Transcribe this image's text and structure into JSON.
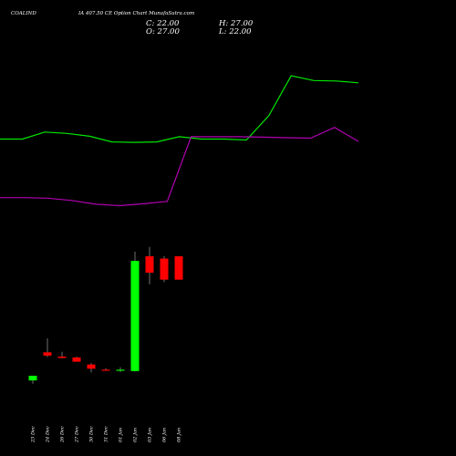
{
  "header": {
    "symbol": "COALIND",
    "title": "IA 407.50  CE Option  Chart MunafaSutra.com",
    "close": "C: 22.00",
    "high": "H: 27.00",
    "open": "O: 27.00",
    "low": "L: 22.00"
  },
  "colors": {
    "background": "#000000",
    "up": "#00ff00",
    "down": "#ff0000",
    "green_line": "#00e600",
    "purple_line": "#b000b0",
    "text": "#ffffff"
  },
  "chart_data": {
    "type": "candlestick",
    "categories": [
      "23 Dec",
      "24 Dec",
      "26 Dec",
      "27 Dec",
      "30 Dec",
      "31 Dec",
      "01 Jan",
      "02 Jan",
      "03 Jan",
      "06 Jan",
      "08 Jan"
    ],
    "candles": [
      {
        "open": 0.5,
        "high": 1.5,
        "low": -0.2,
        "close": 1.5
      },
      {
        "open": 6.5,
        "high": 9.5,
        "low": 5.5,
        "close": 5.8
      },
      {
        "open": 5.6,
        "high": 6.6,
        "low": 5.2,
        "close": 5.3
      },
      {
        "open": 5.4,
        "high": 5.6,
        "low": 4.5,
        "close": 4.5
      },
      {
        "open": 3.9,
        "high": 4.2,
        "low": 2.2,
        "close": 3.0
      },
      {
        "open": 2.8,
        "high": 3.1,
        "low": 2.6,
        "close": 2.6
      },
      {
        "open": 2.7,
        "high": 3.3,
        "low": 2.3,
        "close": 2.8
      },
      {
        "open": 2.5,
        "high": 28.0,
        "low": 2.4,
        "close": 26.0
      },
      {
        "open": 27.0,
        "high": 29.0,
        "low": 21.0,
        "close": 23.5
      },
      {
        "open": 26.5,
        "high": 27.0,
        "low": 21.5,
        "close": 22.0
      },
      {
        "open": 27.0,
        "high": 27.0,
        "low": 22.0,
        "close": 22.0
      }
    ],
    "green_line": [
      52.0,
      52.0,
      53.5,
      53.2,
      52.6,
      51.4,
      51.3,
      51.4,
      52.5,
      52.0,
      52.0,
      51.8,
      57.0,
      65.5,
      64.5,
      64.4,
      64.0
    ],
    "purple_line": [
      39.5,
      39.5,
      39.4,
      38.9,
      38.1,
      37.8,
      38.2,
      38.7,
      52.5,
      52.5,
      52.5,
      52.4,
      52.3,
      52.2,
      54.5,
      51.5
    ],
    "ylim": [
      -2,
      70
    ],
    "grid": false
  }
}
